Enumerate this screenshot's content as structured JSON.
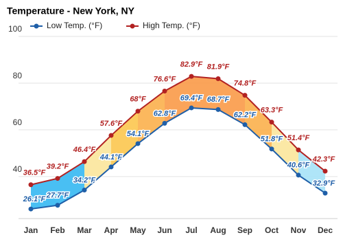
{
  "chart_data": {
    "type": "line",
    "title": "Temperature - New York, NY",
    "categories": [
      "Jan",
      "Feb",
      "Mar",
      "Apr",
      "May",
      "Jun",
      "Jul",
      "Aug",
      "Sep",
      "Oct",
      "Nov",
      "Dec"
    ],
    "series": [
      {
        "name": "Low Temp. (°F)",
        "color": "#1f5fa8",
        "values": [
          26.1,
          27.7,
          34.2,
          44.1,
          54.1,
          62.8,
          69.4,
          68.7,
          62.2,
          51.8,
          40.6,
          32.9
        ],
        "value_labels": [
          "26.1°F",
          "27.7°F",
          "34.2°F",
          "44.1°F",
          "54.1°F",
          "62.8°F",
          "69.4°F",
          "68.7°F",
          "62.2°F",
          "51.8°F",
          "40.6°F",
          "32.9°F"
        ]
      },
      {
        "name": "High Temp. (°F)",
        "color": "#b22222",
        "values": [
          36.5,
          39.2,
          46.4,
          57.6,
          68,
          76.6,
          82.9,
          81.9,
          74.8,
          63.3,
          51.4,
          42.3
        ],
        "value_labels": [
          "36.5°F",
          "39.2°F",
          "46.4°F",
          "57.6°F",
          "68°F",
          "76.6°F",
          "82.9°F",
          "81.9°F",
          "74.8°F",
          "63.3°F",
          "51.4°F",
          "42.3°F"
        ]
      }
    ],
    "ylim": [
      22,
      100
    ],
    "yticks": [
      40,
      60,
      80,
      100
    ],
    "grid": true
  }
}
